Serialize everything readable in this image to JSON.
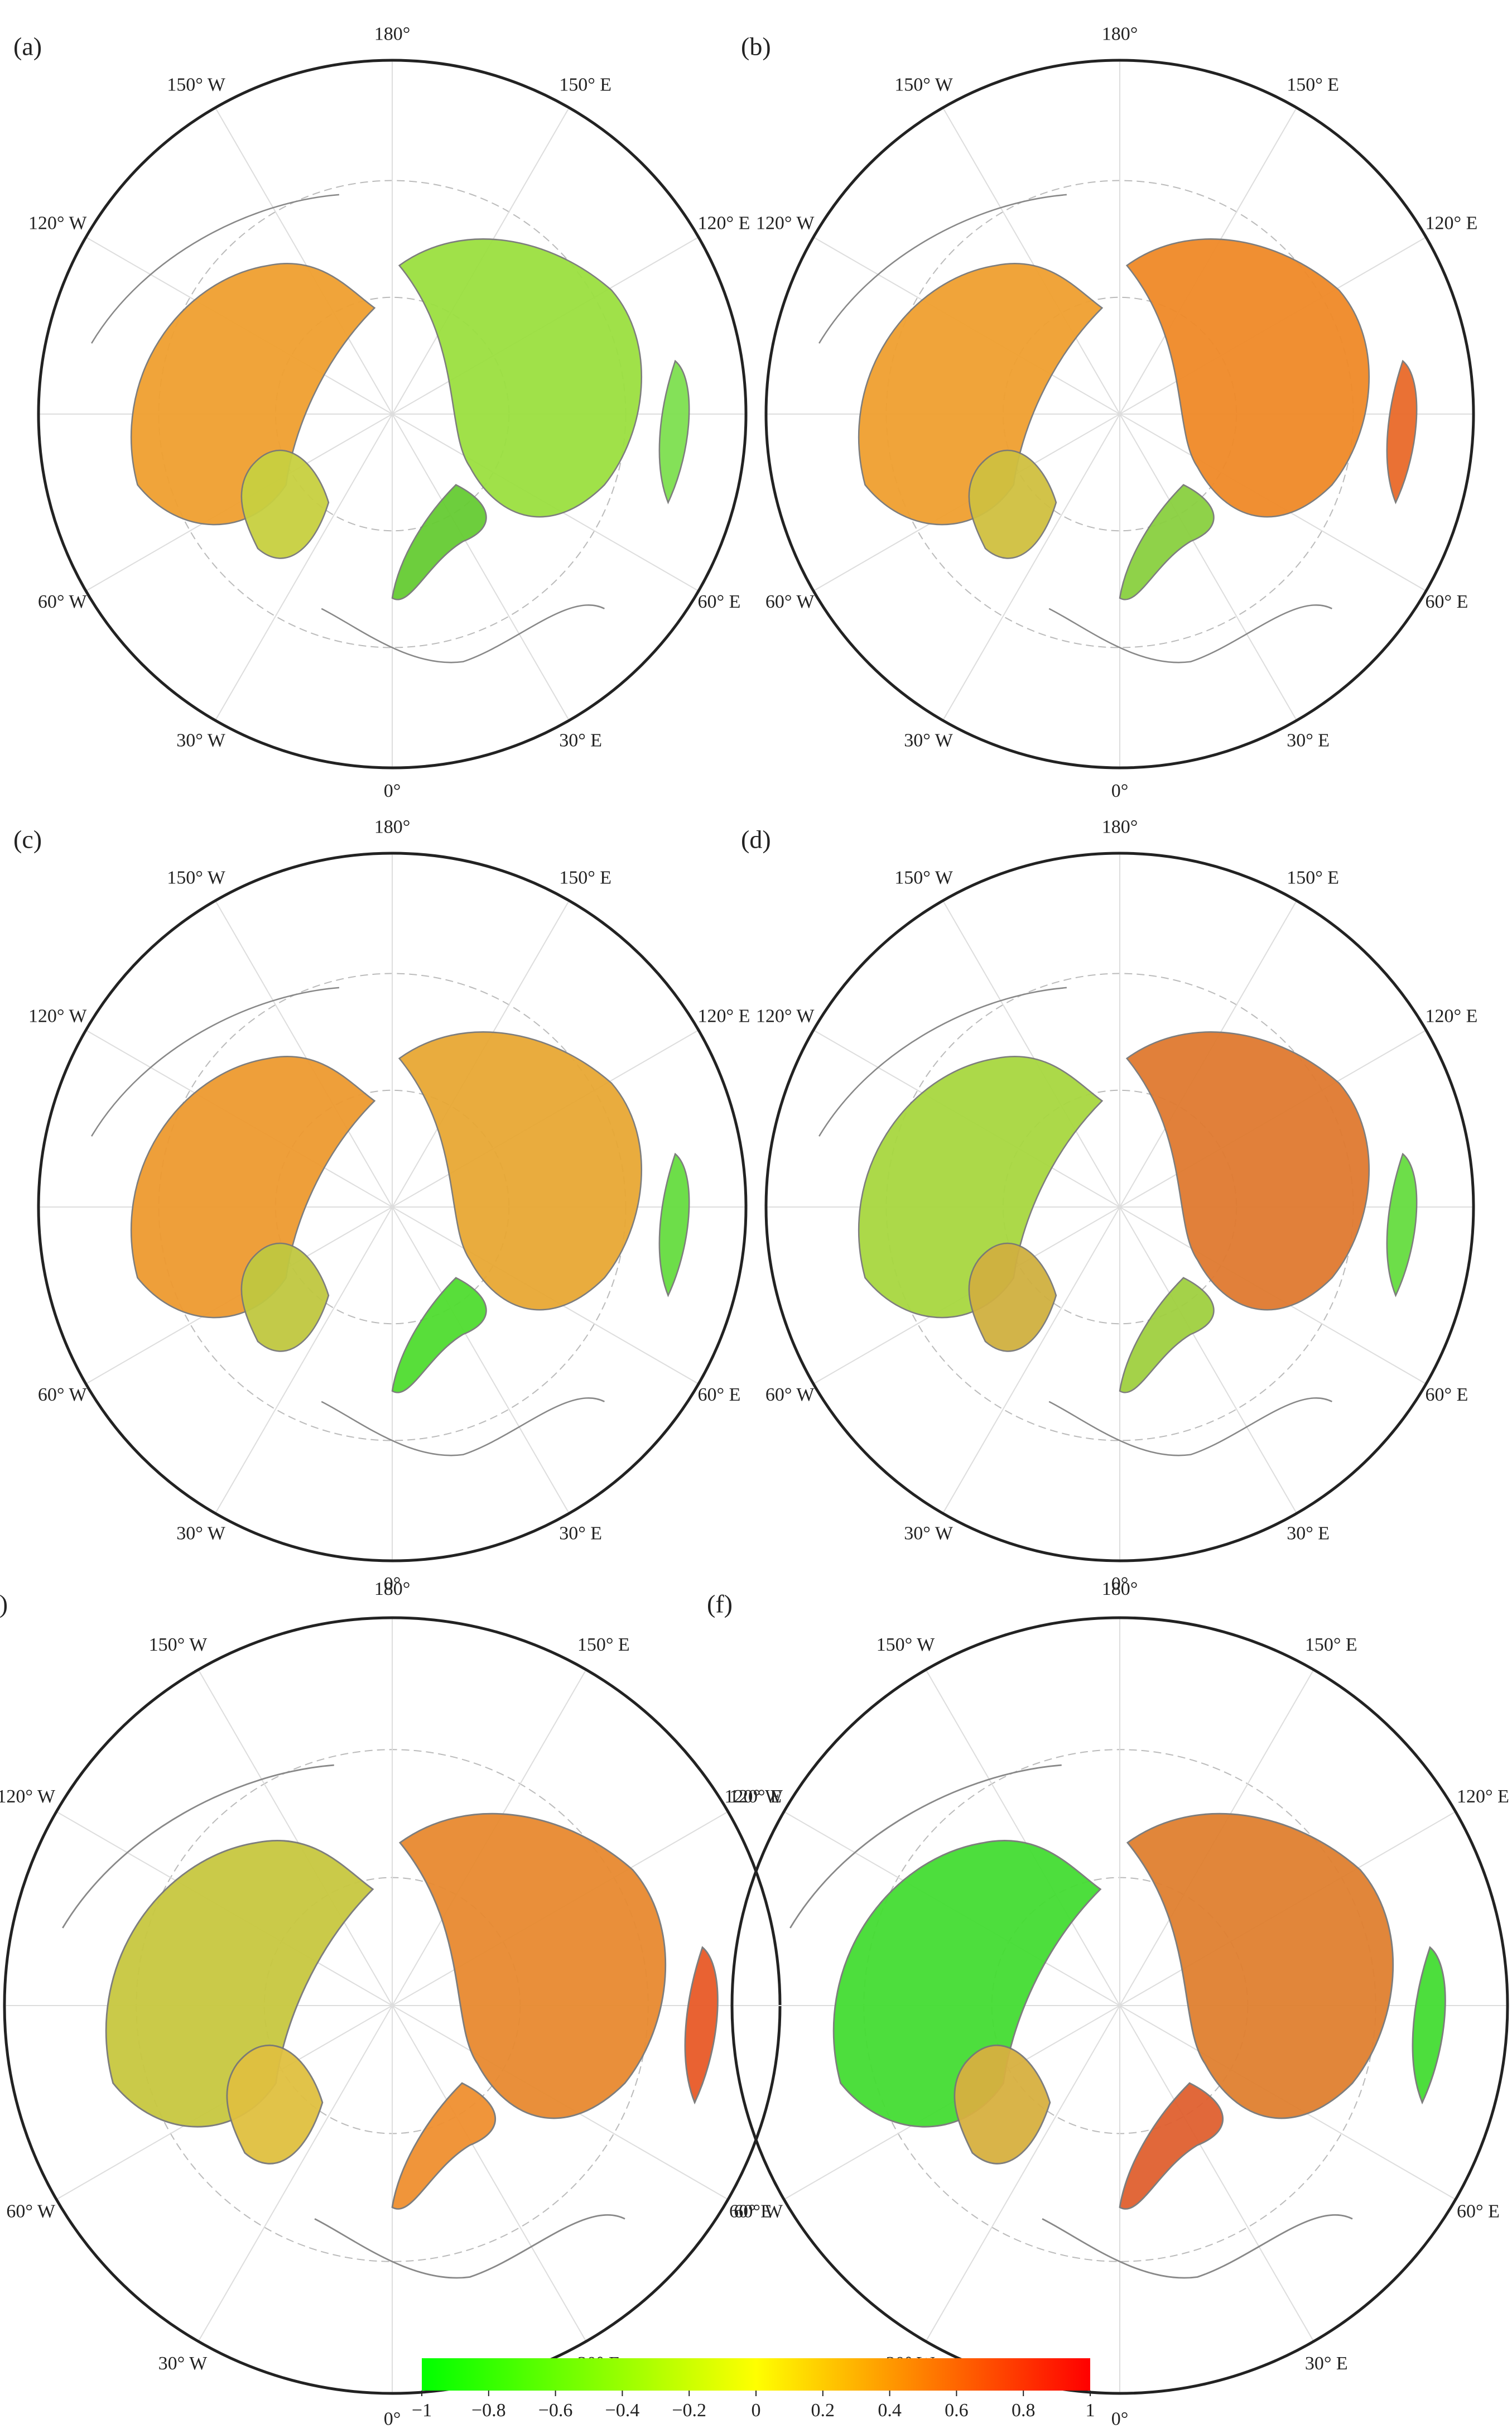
{
  "panels": [
    {
      "label": "(a)"
    },
    {
      "label": "(b)"
    },
    {
      "label": "(c)"
    },
    {
      "label": "(d)"
    },
    {
      "label": "(e)"
    },
    {
      "label": "(f)"
    }
  ],
  "lon_labels": [
    "180°",
    "150° E",
    "120° E",
    "60° E",
    "30° E",
    "0°",
    "30° W",
    "60° W",
    "120° W",
    "150° W"
  ],
  "colorbar": {
    "lim": [
      -1,
      1
    ],
    "colors": [
      "#00ff00",
      "#ffff00",
      "#ff0000"
    ],
    "ticks": [
      {
        "value": -1,
        "label": "−1"
      },
      {
        "value": -0.8,
        "label": "−0.8"
      },
      {
        "value": -0.6,
        "label": "−0.6"
      },
      {
        "value": -0.4,
        "label": "−0.4"
      },
      {
        "value": -0.2,
        "label": "−0.2"
      },
      0,
      0.2,
      0.4,
      0.6,
      0.8,
      1
    ]
  }
}
